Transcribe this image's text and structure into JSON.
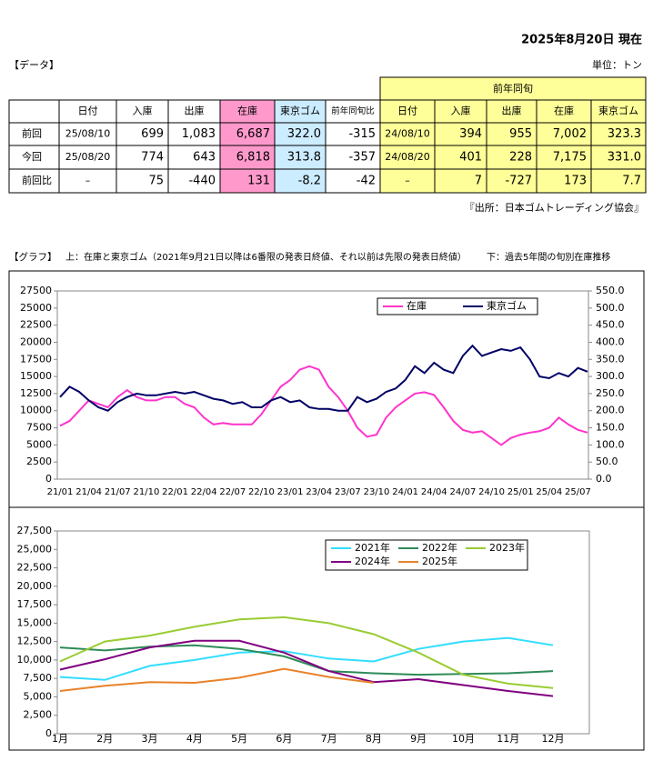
{
  "header": {
    "date": "2025年8月20日 現在",
    "section": "【データ】",
    "unit": "単位：トン"
  },
  "table": {
    "group_header": "前年同旬",
    "columns": [
      "日付",
      "入庫",
      "出庫",
      "在庫",
      "東京ゴム",
      "前年同旬比",
      "日付",
      "入庫",
      "出庫",
      "在庫",
      "東京ゴム"
    ],
    "rows": [
      {
        "label": "前回",
        "cells": [
          "25/08/10",
          "699",
          "1,083",
          "6,687",
          "322.0",
          "-315",
          "24/08/10",
          "394",
          "955",
          "7,002",
          "323.3"
        ]
      },
      {
        "label": "今回",
        "cells": [
          "25/08/20",
          "774",
          "643",
          "6,818",
          "313.8",
          "-357",
          "24/08/20",
          "401",
          "228",
          "7,175",
          "331.0"
        ]
      },
      {
        "label": "前回比",
        "cells": [
          "–",
          "75",
          "-440",
          "131",
          "-8.2",
          "-42",
          "–",
          "7",
          "-727",
          "173",
          "7.7"
        ]
      }
    ]
  },
  "source": "『出所：日本ゴムトレーディング協会』",
  "graph_caption": {
    "label": "【グラフ】",
    "upper": "上：在庫と東京ゴム（2021年9月21日以降は6番限の発表日終値、それ以前は先限の発表日終値）",
    "lower": "下：過去5年間の旬別在庫推移"
  },
  "chart_data": [
    {
      "type": "line",
      "legend": "top-right",
      "categories": [
        "21/01",
        null,
        null,
        "21/04",
        null,
        null,
        "21/07",
        null,
        null,
        "21/10",
        null,
        null,
        "22/01",
        null,
        null,
        "22/04",
        null,
        null,
        "22/07",
        null,
        null,
        "22/10",
        null,
        null,
        "23/01",
        null,
        null,
        "23/04",
        null,
        null,
        "23/07",
        null,
        null,
        "23/10",
        null,
        null,
        "24/01",
        null,
        null,
        "24/04",
        null,
        null,
        "24/07",
        null,
        null,
        "24/10",
        null,
        null,
        "25/01",
        null,
        null,
        "25/04",
        null,
        null,
        "25/07",
        null
      ],
      "ylim": [
        0,
        27500
      ],
      "yticks": [
        0,
        2500,
        5000,
        7500,
        10000,
        12500,
        15000,
        17500,
        20000,
        22500,
        25000,
        27500
      ],
      "y2lim": [
        0,
        550
      ],
      "y2ticks": [
        {
          "value": 0,
          "label": "0.0"
        },
        {
          "value": 50,
          "label": "50.0"
        },
        {
          "value": 100,
          "label": "100.0"
        },
        {
          "value": 150,
          "label": "150.0"
        },
        {
          "value": 200,
          "label": "200.0"
        },
        {
          "value": 250,
          "label": "250.0"
        },
        {
          "value": 300,
          "label": "300.0"
        },
        {
          "value": 350,
          "label": "350.0"
        },
        {
          "value": 400,
          "label": "400.0"
        },
        {
          "value": 450,
          "label": "450.0"
        },
        {
          "value": 500,
          "label": "500.0"
        },
        {
          "value": 550,
          "label": "550.0"
        }
      ],
      "series": [
        {
          "name": "在庫",
          "color": "#ff33cc",
          "values": [
            7800,
            8500,
            10000,
            11500,
            11000,
            10500,
            12000,
            13000,
            12000,
            11500,
            11500,
            12000,
            12000,
            11000,
            10500,
            9000,
            8000,
            8200,
            8000,
            8000,
            8000,
            9500,
            11500,
            13500,
            14500,
            16000,
            16500,
            16000,
            13500,
            12000,
            10000,
            7500,
            6200,
            6500,
            9000,
            10500,
            11500,
            12500,
            12700,
            12300,
            10500,
            8500,
            7200,
            6800,
            7000,
            6000,
            5000,
            6000,
            6500,
            6800,
            7000,
            7500,
            9000,
            8000,
            7200,
            6800
          ]
        },
        {
          "name": "東京ゴム",
          "color": "#000066",
          "axis": "y2",
          "values": [
            240,
            270,
            255,
            230,
            210,
            200,
            225,
            240,
            250,
            245,
            245,
            250,
            255,
            250,
            255,
            245,
            235,
            230,
            220,
            225,
            210,
            210,
            230,
            240,
            225,
            230,
            210,
            205,
            205,
            200,
            200,
            240,
            225,
            235,
            255,
            265,
            290,
            330,
            310,
            340,
            320,
            310,
            360,
            390,
            360,
            370,
            380,
            375,
            385,
            350,
            300,
            295,
            310,
            300,
            325,
            314
          ]
        }
      ]
    },
    {
      "type": "line",
      "legend": "top-right",
      "categories": [
        "1月",
        "2月",
        "3月",
        "4月",
        "5月",
        "6月",
        "7月",
        "8月",
        "9月",
        "10月",
        "11月",
        "12月"
      ],
      "ylim": [
        0,
        27500
      ],
      "yticks": [
        0,
        {
          "value": 2500,
          "label": "2,500"
        },
        {
          "value": 5000,
          "label": "5,000"
        },
        {
          "value": 7500,
          "label": "7,500"
        },
        {
          "value": 10000,
          "label": "10,000"
        },
        {
          "value": 12500,
          "label": "12,500"
        },
        {
          "value": 15000,
          "label": "15,000"
        },
        {
          "value": 17500,
          "label": "17,500"
        },
        {
          "value": 20000,
          "label": "20,000"
        },
        {
          "value": 22500,
          "label": "22,500"
        },
        {
          "value": 25000,
          "label": "25,000"
        },
        {
          "value": 27500,
          "label": "27,500"
        }
      ],
      "series": [
        {
          "name": "2021年",
          "color": "#33ddff",
          "values": [
            7700,
            7300,
            9200,
            10000,
            11000,
            11200,
            10200,
            9800,
            11500,
            12500,
            13000,
            12000
          ]
        },
        {
          "name": "2022年",
          "color": "#2e8b57",
          "values": [
            11700,
            11300,
            11800,
            12000,
            11500,
            10500,
            8500,
            8200,
            8000,
            8100,
            8200,
            8500
          ]
        },
        {
          "name": "2023年",
          "color": "#99cc33",
          "values": [
            9800,
            12500,
            13300,
            14500,
            15500,
            15800,
            15000,
            13500,
            11000,
            8000,
            6800,
            6200
          ]
        },
        {
          "name": "2024年",
          "color": "#800080",
          "values": [
            8700,
            10100,
            11700,
            12600,
            12600,
            11000,
            8500,
            7000,
            7400,
            6600,
            5800,
            5100
          ]
        },
        {
          "name": "2025年",
          "color": "#e8822a",
          "values": [
            5800,
            6500,
            7000,
            6900,
            7600,
            8800,
            7700,
            6900,
            null,
            null,
            null,
            null
          ]
        }
      ]
    }
  ]
}
